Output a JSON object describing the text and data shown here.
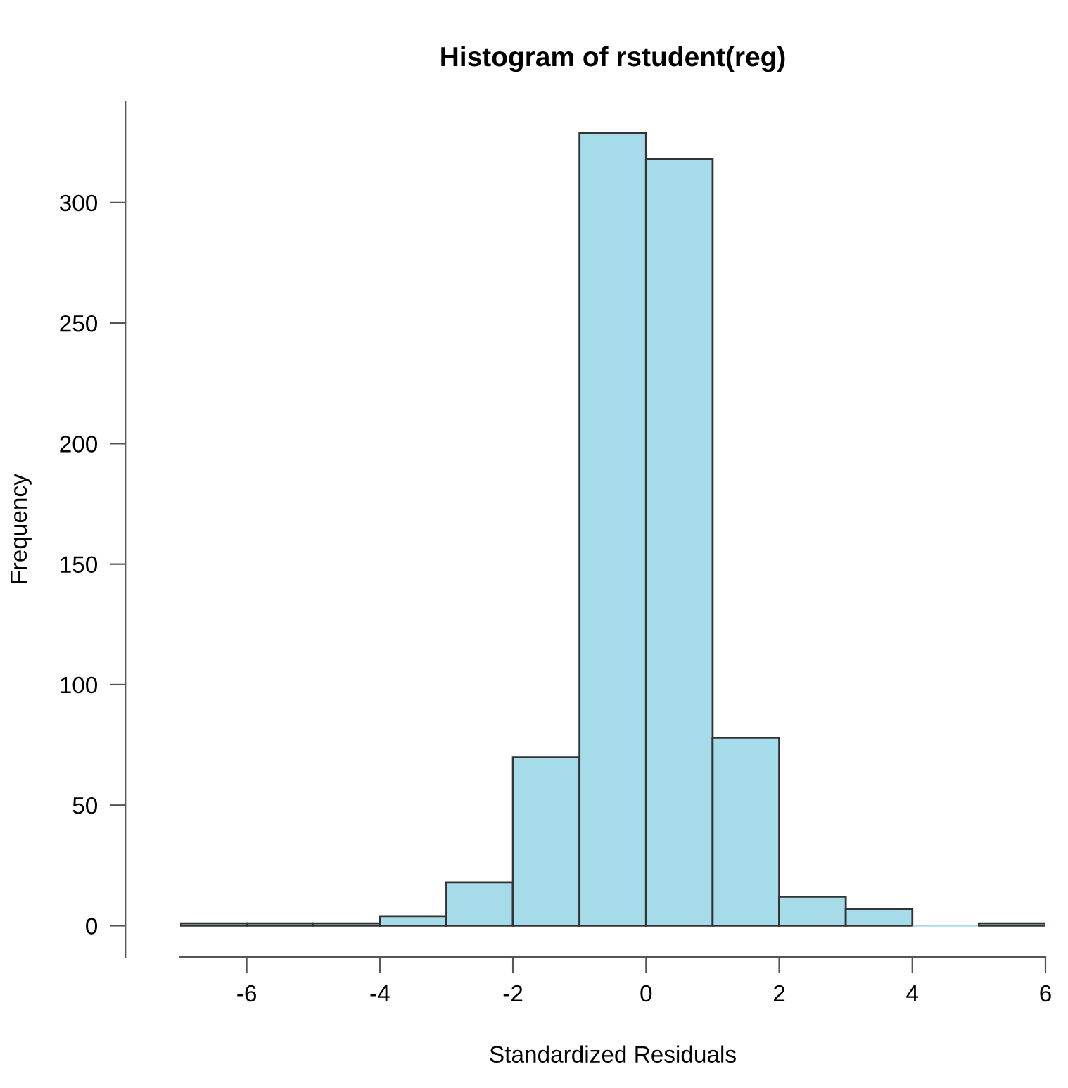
{
  "chart_data": {
    "type": "histogram",
    "title": "Histogram of rstudent(reg)",
    "xlabel": "Standardized Residuals",
    "ylabel": "Frequency",
    "bins": [
      -7,
      -6,
      -5,
      -4,
      -3,
      -2,
      -1,
      0,
      1,
      2,
      3,
      4,
      5,
      6
    ],
    "values": [
      1,
      1,
      1,
      4,
      18,
      70,
      329,
      318,
      78,
      12,
      7,
      0,
      1
    ],
    "color": "#a6dcea",
    "xlim": [
      -7,
      6
    ],
    "xticks": [
      -6,
      -4,
      -2,
      0,
      2,
      4,
      6
    ],
    "ylim": [
      -13,
      342
    ],
    "yticks": [
      0,
      50,
      100,
      150,
      200,
      250,
      300
    ],
    "grid": false,
    "legend": false
  }
}
